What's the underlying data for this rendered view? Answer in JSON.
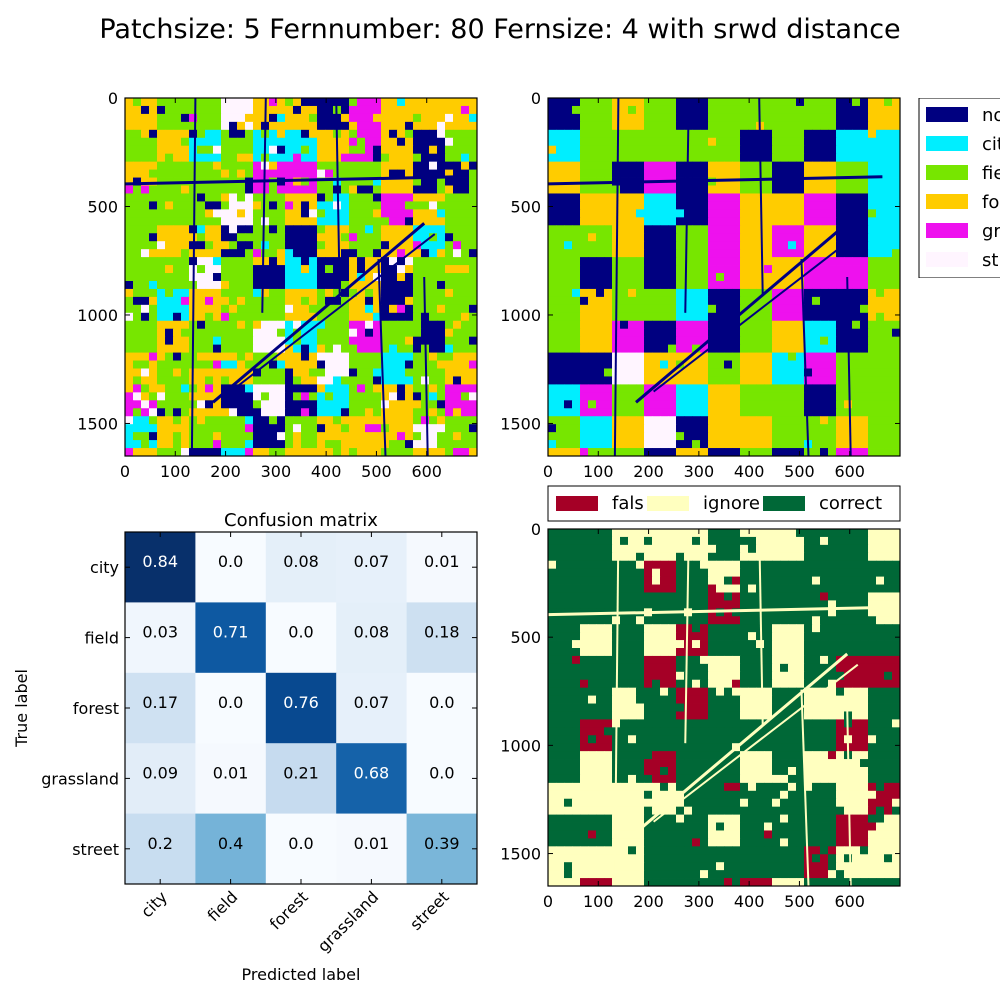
{
  "figure": {
    "title": "Patchsize: 5 Fernnumber: 80 Fernsize: 4 with srwd distance"
  },
  "colors": {
    "none": "#000080",
    "city": "#00eeff",
    "field": "#77e600",
    "forest": "#ffcc00",
    "grassland": "#ee11ee",
    "street": "#fff5ff",
    "false": "#a50026",
    "ignore": "#ffffbf",
    "correct": "#006837"
  },
  "chart_data": [
    {
      "type": "heatmap",
      "id": "prediction-map",
      "description_axes": "image axes",
      "x_ticks": [
        0,
        100,
        200,
        300,
        400,
        500,
        600
      ],
      "y_ticks": [
        0,
        500,
        1000,
        1500
      ],
      "xlim": [
        0,
        700
      ],
      "ylim": [
        1650,
        0
      ]
    },
    {
      "type": "heatmap",
      "id": "ground-truth-map",
      "x_ticks": [
        0,
        100,
        200,
        300,
        400,
        500,
        600
      ],
      "y_ticks": [
        0,
        500,
        1000,
        1500
      ],
      "xlim": [
        0,
        700
      ],
      "ylim": [
        1650,
        0
      ],
      "legend": {
        "placement": "right, outside top",
        "entries": [
          "no",
          "cit",
          "fie",
          "fo",
          "gr",
          "st"
        ],
        "color_keys": [
          "none",
          "city",
          "field",
          "forest",
          "grassland",
          "street"
        ]
      }
    },
    {
      "type": "heatmap",
      "id": "confusion-matrix",
      "title": "Confusion matrix",
      "xlabel": "Predicted label",
      "ylabel": "True label",
      "x_categories": [
        "city",
        "field",
        "forest",
        "grassland",
        "street"
      ],
      "y_categories": [
        "city",
        "field",
        "forest",
        "grassland",
        "street"
      ],
      "values": [
        [
          0.84,
          0.0,
          0.08,
          0.07,
          0.01
        ],
        [
          0.03,
          0.71,
          0.0,
          0.08,
          0.18
        ],
        [
          0.17,
          0.0,
          0.76,
          0.07,
          0.0
        ],
        [
          0.09,
          0.01,
          0.21,
          0.68,
          0.0
        ],
        [
          0.2,
          0.4,
          0.0,
          0.01,
          0.39
        ]
      ],
      "value_labels": [
        [
          "0.84",
          "0.0",
          "0.08",
          "0.07",
          "0.01"
        ],
        [
          "0.03",
          "0.71",
          "0.0",
          "0.08",
          "0.18"
        ],
        [
          "0.17",
          "0.0",
          "0.76",
          "0.07",
          "0.0"
        ],
        [
          "0.09",
          "0.01",
          "0.21",
          "0.68",
          "0.0"
        ],
        [
          "0.2",
          "0.4",
          "0.0",
          "0.01",
          "0.39"
        ]
      ],
      "colormap": "Blues",
      "vmax": 0.84
    },
    {
      "type": "heatmap",
      "id": "error-map",
      "x_ticks": [
        0,
        100,
        200,
        300,
        400,
        500,
        600
      ],
      "y_ticks": [
        0,
        500,
        1000,
        1500
      ],
      "xlim": [
        0,
        700
      ],
      "ylim": [
        1650,
        0
      ],
      "legend": {
        "placement": "top, above axes",
        "entries": [
          "fals",
          "ignore",
          "correct"
        ],
        "color_keys": [
          "false",
          "ignore",
          "correct"
        ]
      }
    }
  ]
}
